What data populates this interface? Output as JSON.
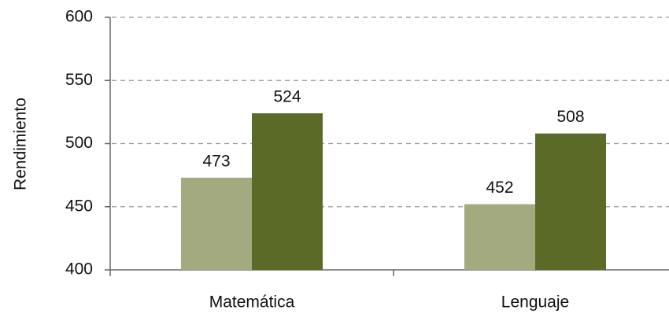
{
  "chart_data": {
    "type": "bar",
    "categories": [
      "Matemática",
      "Lenguaje"
    ],
    "series": [
      {
        "color": "#a3aa7f",
        "values": [
          473,
          452
        ]
      },
      {
        "color": "#5a6a27",
        "values": [
          524,
          508
        ]
      }
    ],
    "ylabel": "Rendimiento",
    "ylim": [
      400,
      600
    ],
    "yticks": [
      400,
      450,
      500,
      550,
      600
    ],
    "grid": true
  }
}
